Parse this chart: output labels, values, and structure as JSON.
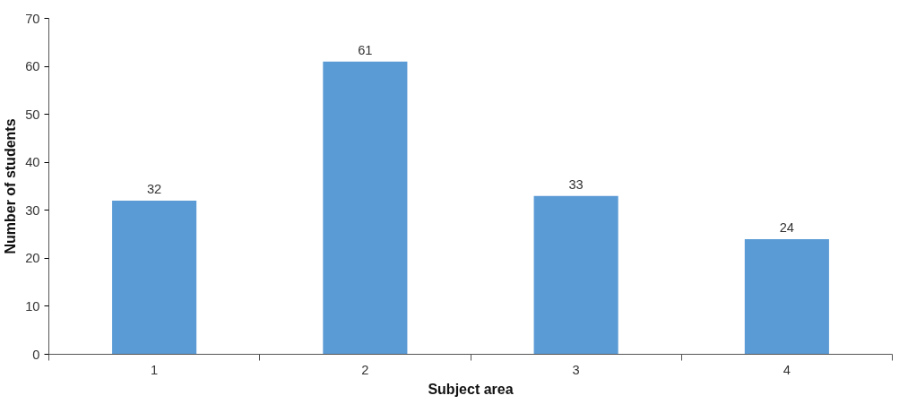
{
  "chart_data": {
    "type": "bar",
    "xlabel": "Subject area",
    "ylabel": "Number of students",
    "categories": [
      "1",
      "2",
      "3",
      "4"
    ],
    "values": [
      32,
      61,
      33,
      24
    ],
    "color": "#5b9bd5",
    "ylim": [
      0,
      70
    ],
    "yticks": [
      0,
      10,
      20,
      30,
      40,
      50,
      60,
      70
    ],
    "data_labels": true
  }
}
